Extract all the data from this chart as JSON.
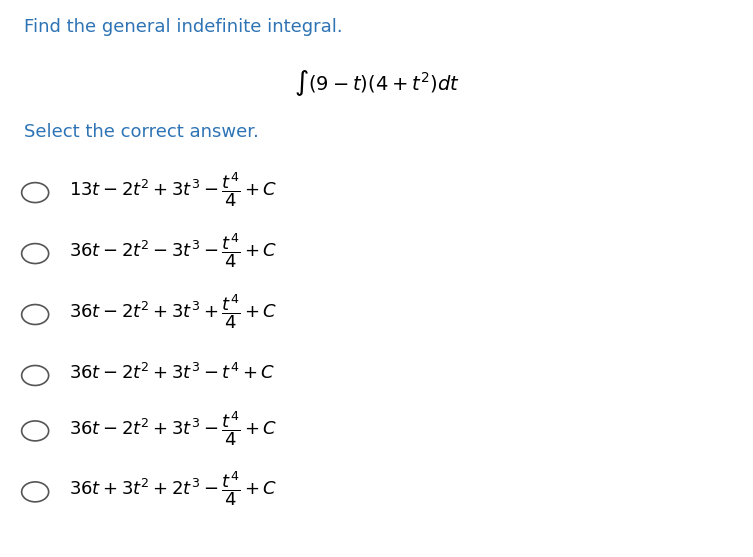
{
  "title": "Find the general indefinite integral.",
  "subtitle": "$\\int (9 - t)\\left(4 + t^2\\right)dt$",
  "select_text": "Select the correct answer.",
  "options": [
    "$13t - 2t^2 + 3t^3 - \\dfrac{t^4}{4} + C$",
    "$36t - 2t^2 - 3t^3 - \\dfrac{t^4}{4} + C$",
    "$36t - 2t^2 + 3t^3 + \\dfrac{t^4}{4} + C$",
    "$36t - 2t^2 + 3t^3 - t^4 + C$",
    "$36t - 2t^2 + 3t^3 - \\dfrac{t^4}{4} + C$",
    "$36t + 3t^2 + 2t^3 - \\dfrac{t^4}{4} + C$"
  ],
  "title_color": "#2e74b5",
  "select_color": "#2e74b5",
  "option_color": "#000000",
  "bg_color": "#ffffff",
  "title_fontsize": 13,
  "subtitle_fontsize": 14,
  "select_fontsize": 13,
  "option_fontsize": 13
}
